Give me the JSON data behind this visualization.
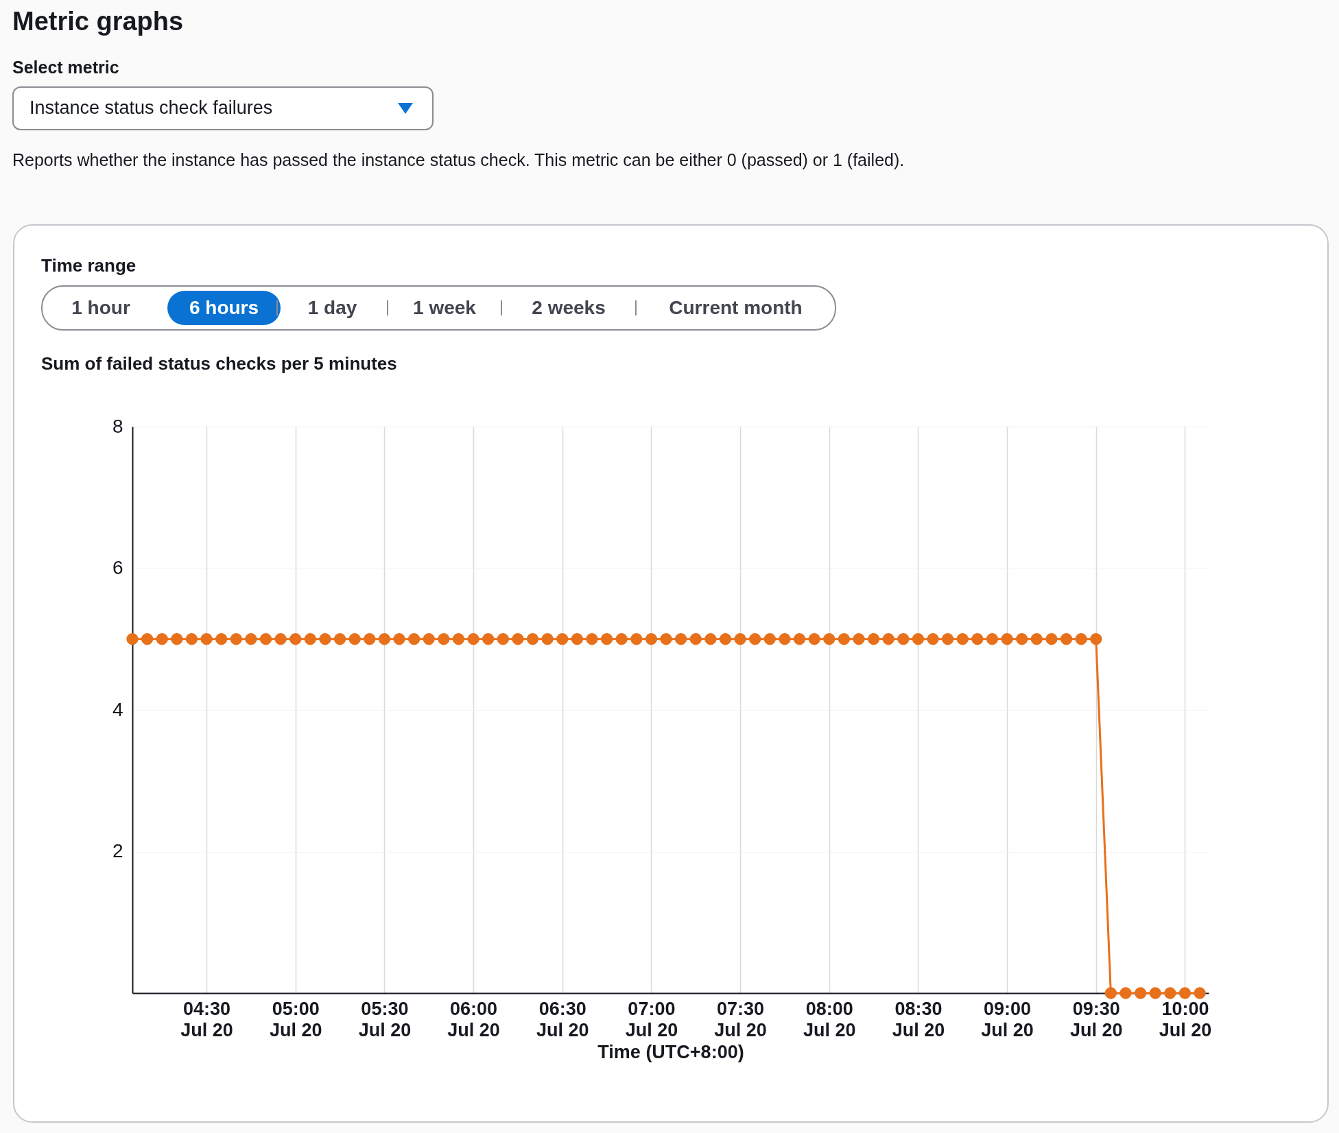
{
  "chart_data": {
    "type": "line",
    "title": "Sum of failed status checks per 5 minutes",
    "xlabel": "Time (UTC+8:00)",
    "annotations": [
      "Metric graphs",
      "Select metric",
      "Instance status check failures",
      "Reports whether the instance has passed the instance status check. This metric can be either 0 (passed) or 1 (failed).",
      "Time range",
      "1 hour",
      "6 hours",
      "1 day",
      "1 week",
      "2 weeks",
      "Current month"
    ],
    "x": [
      "--07-20T04:05",
      "--07-20T04:10",
      "--07-20T04:15",
      "--07-20T04:20",
      "--07-20T04:25",
      "--07-20T04:30",
      "--07-20T04:35",
      "--07-20T04:40",
      "--07-20T04:45",
      "--07-20T04:50",
      "--07-20T04:55",
      "--07-20T05:00",
      "--07-20T05:05",
      "--07-20T05:10",
      "--07-20T05:15",
      "--07-20T05:20",
      "--07-20T05:25",
      "--07-20T05:30",
      "--07-20T05:35",
      "--07-20T05:40",
      "--07-20T05:45",
      "--07-20T05:50",
      "--07-20T05:55",
      "--07-20T06:00",
      "--07-20T06:05",
      "--07-20T06:10",
      "--07-20T06:15",
      "--07-20T06:20",
      "--07-20T06:25",
      "--07-20T06:30",
      "--07-20T06:35",
      "--07-20T06:40",
      "--07-20T06:45",
      "--07-20T06:50",
      "--07-20T06:55",
      "--07-20T07:00",
      "--07-20T07:05",
      "--07-20T07:10",
      "--07-20T07:15",
      "--07-20T07:20",
      "--07-20T07:25",
      "--07-20T07:30",
      "--07-20T07:35",
      "--07-20T07:40",
      "--07-20T07:45",
      "--07-20T07:50",
      "--07-20T07:55",
      "--07-20T08:00",
      "--07-20T08:05",
      "--07-20T08:10",
      "--07-20T08:15",
      "--07-20T08:20",
      "--07-20T08:25",
      "--07-20T08:30",
      "--07-20T08:35",
      "--07-20T08:40",
      "--07-20T08:45",
      "--07-20T08:50",
      "--07-20T08:55",
      "--07-20T09:00",
      "--07-20T09:05",
      "--07-20T09:10",
      "--07-20T09:15",
      "--07-20T09:20",
      "--07-20T09:25",
      "--07-20T09:30",
      "--07-20T09:35",
      "--07-20T09:40",
      "--07-20T09:45",
      "--07-20T09:50",
      "--07-20T09:55",
      "--07-20T10:00",
      "--07-20T10:05"
    ],
    "series": [
      {
        "color": "#e8701a",
        "values": [
          5,
          5,
          5,
          5,
          5,
          5,
          5,
          5,
          5,
          5,
          5,
          5,
          5,
          5,
          5,
          5,
          5,
          5,
          5,
          5,
          5,
          5,
          5,
          5,
          5,
          5,
          5,
          5,
          5,
          5,
          5,
          5,
          5,
          5,
          5,
          5,
          5,
          5,
          5,
          5,
          5,
          5,
          5,
          5,
          5,
          5,
          5,
          5,
          5,
          5,
          5,
          5,
          5,
          5,
          5,
          5,
          5,
          5,
          5,
          5,
          5,
          5,
          5,
          5,
          5,
          5,
          0,
          0,
          0,
          0,
          0,
          0,
          0
        ]
      }
    ],
    "xlim": [
      "--07-20T04:05",
      "--07-20T10:08"
    ],
    "xticks": [
      {
        "value": "--07-20T04:30",
        "label": "04:30\nJul 20"
      },
      {
        "value": "--07-20T05:00",
        "label": "05:00\nJul 20"
      },
      {
        "value": "--07-20T05:30",
        "label": "05:30\nJul 20"
      },
      {
        "value": "--07-20T06:00",
        "label": "06:00\nJul 20"
      },
      {
        "value": "--07-20T06:30",
        "label": "06:30\nJul 20"
      },
      {
        "value": "--07-20T07:00",
        "label": "07:00\nJul 20"
      },
      {
        "value": "--07-20T07:30",
        "label": "07:30\nJul 20"
      },
      {
        "value": "--07-20T08:00",
        "label": "08:00\nJul 20"
      },
      {
        "value": "--07-20T08:30",
        "label": "08:30\nJul 20"
      },
      {
        "value": "--07-20T09:00",
        "label": "09:00\nJul 20"
      },
      {
        "value": "--07-20T09:30",
        "label": "09:30\nJul 20"
      },
      {
        "value": "--07-20T10:00",
        "label": "10:00\nJul 20"
      }
    ],
    "ylim": [
      0,
      8
    ],
    "yticks": [
      2,
      4,
      6,
      8
    ],
    "grid": true,
    "marker": "circle",
    "line_style": "solid",
    "legend": false
  }
}
